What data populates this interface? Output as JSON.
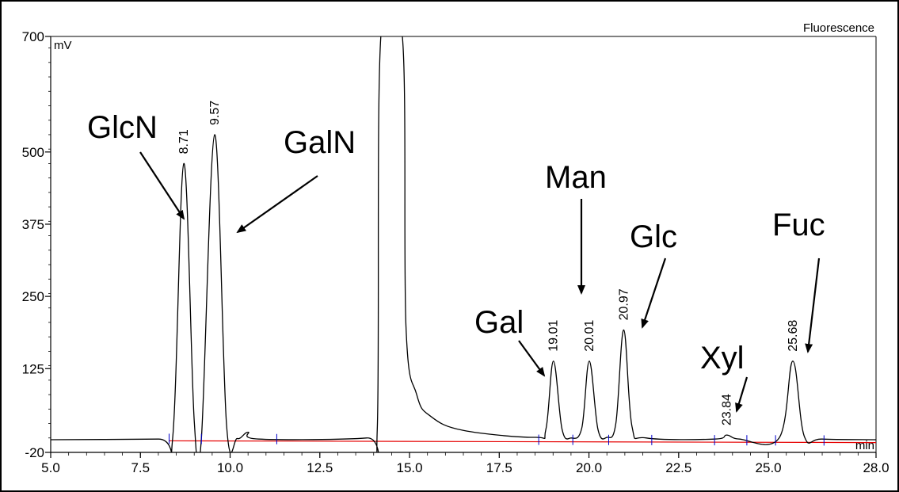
{
  "chart_data": {
    "type": "line",
    "detector": "Fluorescence",
    "ylabel": "mV",
    "xlabel": "min",
    "xlim": [
      5.0,
      28.0
    ],
    "ylim": [
      -20,
      700
    ],
    "grid": false,
    "xticks": [
      {
        "v": 5.0,
        "label": "5.0"
      },
      {
        "v": 7.5,
        "label": "7.5"
      },
      {
        "v": 10.0,
        "label": "10.0"
      },
      {
        "v": 12.5,
        "label": "12.5"
      },
      {
        "v": 15.0,
        "label": "15.0"
      },
      {
        "v": 17.5,
        "label": "17.5"
      },
      {
        "v": 20.0,
        "label": "20.0"
      },
      {
        "v": 22.5,
        "label": "22.5"
      },
      {
        "v": 25.0,
        "label": "25.0"
      },
      {
        "v": 28.0,
        "label": "28.0"
      }
    ],
    "yticks": [
      {
        "v": 700,
        "label": "700"
      },
      {
        "v": 500,
        "label": "500"
      },
      {
        "v": 375,
        "label": "375"
      },
      {
        "v": 250,
        "label": "250"
      },
      {
        "v": 125,
        "label": "125"
      },
      {
        "v": -20,
        "label": "-20"
      }
    ],
    "series": [
      {
        "x": [
          5.0,
          8.0,
          8.4,
          8.71,
          9.0,
          9.2,
          9.57,
          9.9,
          10.2,
          10.5,
          10.8,
          13.8,
          14.1,
          14.2,
          14.8,
          14.9,
          15.2,
          15.6,
          16.5,
          18.5,
          18.8,
          19.01,
          19.25,
          19.5,
          19.8,
          20.01,
          20.25,
          20.5,
          20.75,
          20.97,
          21.2,
          21.6,
          23.5,
          23.84,
          24.2,
          25.3,
          25.68,
          26.0,
          26.5,
          28.0
        ],
        "y": [
          2,
          3,
          5,
          480,
          35,
          5,
          530,
          28,
          4,
          15,
          3,
          5,
          20,
          700,
          700,
          200,
          80,
          42,
          18,
          6,
          20,
          138,
          20,
          5,
          22,
          138,
          20,
          6,
          30,
          192,
          25,
          5,
          3,
          10,
          3,
          5,
          138,
          8,
          3,
          2
        ]
      }
    ],
    "peaks": [
      {
        "rt": "8.71",
        "x": 8.71,
        "y": 480,
        "compound": "GlcN"
      },
      {
        "rt": "9.57",
        "x": 9.57,
        "y": 530,
        "compound": "GalN"
      },
      {
        "rt": "19.01",
        "x": 19.01,
        "y": 138,
        "compound": "Gal"
      },
      {
        "rt": "20.01",
        "x": 20.01,
        "y": 138,
        "compound": "Man"
      },
      {
        "rt": "20.97",
        "x": 20.97,
        "y": 192,
        "compound": "Glc"
      },
      {
        "rt": "23.84",
        "x": 23.84,
        "y": 10,
        "compound": "Xyl"
      },
      {
        "rt": "25.68",
        "x": 25.68,
        "y": 138,
        "compound": "Fuc"
      }
    ],
    "integration_markers": [
      8.3,
      9.2,
      11.3,
      18.6,
      19.55,
      20.55,
      21.75,
      23.5,
      24.4,
      25.2,
      26.55
    ],
    "baseline": {
      "color": "#e60000",
      "x": [
        8.3,
        28.0
      ],
      "y": [
        0,
        -3
      ]
    },
    "trace_color": "#000000",
    "marker_color": "#0000cc"
  }
}
